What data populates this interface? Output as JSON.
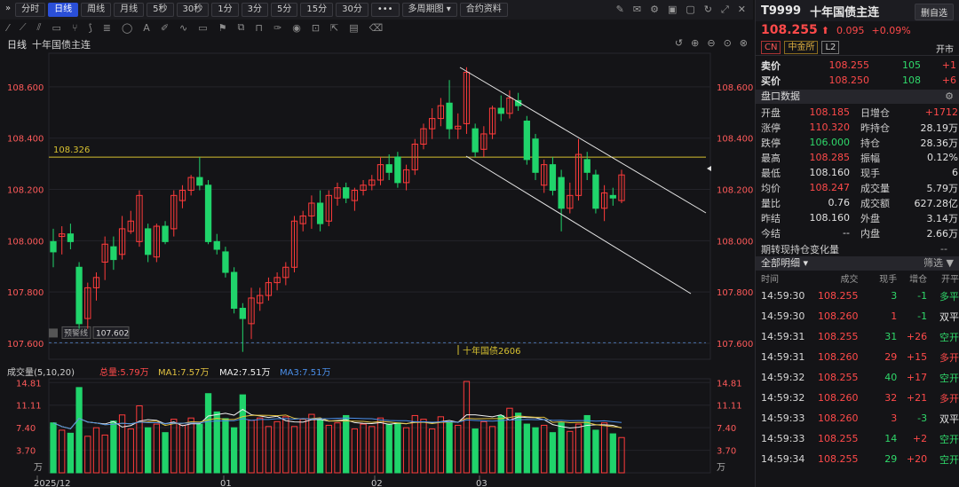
{
  "toolbar": {
    "periods": [
      "分时",
      "日线",
      "周线",
      "月线",
      "5秒",
      "30秒",
      "1分",
      "3分",
      "5分",
      "15分",
      "30分"
    ],
    "active": "日线",
    "more": "•••",
    "multi": "多周期图",
    "contract": "合约资料"
  },
  "chart": {
    "period_label": "日线",
    "name": "十年国债主连",
    "hline_label": "108.326",
    "alert_label": "预警线",
    "alert_value": "107.602",
    "contract_marker": "十年国债2606",
    "y_ticks": [
      "108.600",
      "108.400",
      "108.200",
      "108.000",
      "107.800",
      "107.600"
    ],
    "x_ticks": [
      "2025/12",
      "01",
      "02",
      "03"
    ],
    "colors": {
      "up": "#ff3b3b",
      "down": "#20d46b",
      "hline": "#d6c030",
      "alert": "#4a6fa8"
    }
  },
  "volume": {
    "title": "成交量(5,10,20)",
    "total_label": "总量:5.79万",
    "ma1": "MA1:7.57万",
    "ma2": "MA2:7.51万",
    "ma3": "MA3:7.51万",
    "y_ticks": [
      "14.81",
      "11.11",
      "7.40",
      "3.70"
    ],
    "unit": "万"
  },
  "chart_data": {
    "type": "candlestick",
    "y_range": [
      107.6,
      108.7
    ],
    "candles": [
      {
        "o": 108.0,
        "h": 108.05,
        "l": 107.9,
        "c": 107.96
      },
      {
        "o": 108.02,
        "h": 108.06,
        "l": 107.95,
        "c": 108.03
      },
      {
        "o": 108.03,
        "h": 108.07,
        "l": 107.97,
        "c": 108.0
      },
      {
        "o": 107.9,
        "h": 107.92,
        "l": 107.66,
        "c": 107.68
      },
      {
        "o": 107.7,
        "h": 107.84,
        "l": 107.66,
        "c": 107.82
      },
      {
        "o": 107.82,
        "h": 107.88,
        "l": 107.77,
        "c": 107.86
      },
      {
        "o": 107.92,
        "h": 108.02,
        "l": 107.85,
        "c": 107.99
      },
      {
        "o": 107.98,
        "h": 108.02,
        "l": 107.89,
        "c": 107.93
      },
      {
        "o": 107.95,
        "h": 108.1,
        "l": 107.93,
        "c": 108.05
      },
      {
        "o": 108.04,
        "h": 108.12,
        "l": 108.03,
        "c": 108.08
      },
      {
        "o": 108.0,
        "h": 108.2,
        "l": 107.98,
        "c": 108.18
      },
      {
        "o": 108.05,
        "h": 108.07,
        "l": 107.92,
        "c": 107.95
      },
      {
        "o": 107.94,
        "h": 108.07,
        "l": 107.92,
        "c": 108.06
      },
      {
        "o": 108.06,
        "h": 108.08,
        "l": 107.99,
        "c": 108.0
      },
      {
        "o": 108.05,
        "h": 108.2,
        "l": 108.02,
        "c": 108.18
      },
      {
        "o": 108.16,
        "h": 108.22,
        "l": 108.13,
        "c": 108.2
      },
      {
        "o": 108.2,
        "h": 108.26,
        "l": 108.18,
        "c": 108.25
      },
      {
        "o": 108.25,
        "h": 108.33,
        "l": 108.2,
        "c": 108.22
      },
      {
        "o": 108.22,
        "h": 108.24,
        "l": 107.99,
        "c": 108.0
      },
      {
        "o": 108.0,
        "h": 108.03,
        "l": 107.95,
        "c": 107.97
      },
      {
        "o": 107.96,
        "h": 107.98,
        "l": 107.86,
        "c": 107.88
      },
      {
        "o": 107.88,
        "h": 107.9,
        "l": 107.72,
        "c": 107.74
      },
      {
        "o": 107.74,
        "h": 107.76,
        "l": 107.57,
        "c": 107.7
      },
      {
        "o": 107.68,
        "h": 107.82,
        "l": 107.62,
        "c": 107.78
      },
      {
        "o": 107.76,
        "h": 107.82,
        "l": 107.73,
        "c": 107.79
      },
      {
        "o": 107.79,
        "h": 107.86,
        "l": 107.77,
        "c": 107.84
      },
      {
        "o": 107.84,
        "h": 107.88,
        "l": 107.81,
        "c": 107.86
      },
      {
        "o": 107.86,
        "h": 107.92,
        "l": 107.83,
        "c": 107.9
      },
      {
        "o": 107.9,
        "h": 108.1,
        "l": 107.88,
        "c": 108.08
      },
      {
        "o": 108.07,
        "h": 108.12,
        "l": 108.04,
        "c": 108.1
      },
      {
        "o": 108.1,
        "h": 108.18,
        "l": 108.05,
        "c": 108.15
      },
      {
        "o": 108.15,
        "h": 108.2,
        "l": 108.04,
        "c": 108.07
      },
      {
        "o": 108.08,
        "h": 108.2,
        "l": 108.06,
        "c": 108.18
      },
      {
        "o": 108.17,
        "h": 108.23,
        "l": 108.14,
        "c": 108.21
      },
      {
        "o": 108.21,
        "h": 108.23,
        "l": 108.15,
        "c": 108.17
      },
      {
        "o": 108.16,
        "h": 108.21,
        "l": 108.12,
        "c": 108.2
      },
      {
        "o": 108.2,
        "h": 108.24,
        "l": 108.18,
        "c": 108.22
      },
      {
        "o": 108.22,
        "h": 108.26,
        "l": 108.2,
        "c": 108.24
      },
      {
        "o": 108.24,
        "h": 108.33,
        "l": 108.22,
        "c": 108.3
      },
      {
        "o": 108.3,
        "h": 108.34,
        "l": 108.24,
        "c": 108.27
      },
      {
        "o": 108.33,
        "h": 108.35,
        "l": 108.21,
        "c": 108.23
      },
      {
        "o": 108.23,
        "h": 108.3,
        "l": 108.2,
        "c": 108.28
      },
      {
        "o": 108.28,
        "h": 108.4,
        "l": 108.26,
        "c": 108.38
      },
      {
        "o": 108.38,
        "h": 108.46,
        "l": 108.36,
        "c": 108.44
      },
      {
        "o": 108.44,
        "h": 108.52,
        "l": 108.4,
        "c": 108.48
      },
      {
        "o": 108.48,
        "h": 108.56,
        "l": 108.45,
        "c": 108.53
      },
      {
        "o": 108.54,
        "h": 108.63,
        "l": 108.4,
        "c": 108.44
      },
      {
        "o": 108.44,
        "h": 108.5,
        "l": 108.4,
        "c": 108.45
      },
      {
        "o": 108.46,
        "h": 108.68,
        "l": 108.42,
        "c": 108.66
      },
      {
        "o": 108.44,
        "h": 108.46,
        "l": 108.33,
        "c": 108.35
      },
      {
        "o": 108.36,
        "h": 108.45,
        "l": 108.33,
        "c": 108.42
      },
      {
        "o": 108.42,
        "h": 108.53,
        "l": 108.4,
        "c": 108.52
      },
      {
        "o": 108.52,
        "h": 108.57,
        "l": 108.47,
        "c": 108.5
      },
      {
        "o": 108.5,
        "h": 108.59,
        "l": 108.48,
        "c": 108.56
      },
      {
        "o": 108.55,
        "h": 108.58,
        "l": 108.51,
        "c": 108.53
      },
      {
        "o": 108.47,
        "h": 108.49,
        "l": 108.3,
        "c": 108.32
      },
      {
        "o": 108.4,
        "h": 108.42,
        "l": 108.24,
        "c": 108.27
      },
      {
        "o": 108.22,
        "h": 108.32,
        "l": 108.19,
        "c": 108.3
      },
      {
        "o": 108.3,
        "h": 108.33,
        "l": 108.18,
        "c": 108.2
      },
      {
        "o": 108.25,
        "h": 108.28,
        "l": 108.04,
        "c": 108.13
      },
      {
        "o": 108.13,
        "h": 108.23,
        "l": 108.11,
        "c": 108.18
      },
      {
        "o": 108.18,
        "h": 108.4,
        "l": 108.16,
        "c": 108.34
      },
      {
        "o": 108.32,
        "h": 108.35,
        "l": 108.24,
        "c": 108.27
      },
      {
        "o": 108.26,
        "h": 108.28,
        "l": 108.11,
        "c": 108.13
      },
      {
        "o": 108.13,
        "h": 108.22,
        "l": 108.08,
        "c": 108.19
      },
      {
        "o": 108.18,
        "h": 108.21,
        "l": 108.14,
        "c": 108.17
      },
      {
        "o": 108.16,
        "h": 108.28,
        "l": 108.15,
        "c": 108.26
      }
    ],
    "volumes": [
      8.2,
      7.0,
      6.5,
      14.0,
      6.0,
      7.4,
      6.2,
      8.5,
      9.5,
      7.2,
      11.0,
      7.4,
      8.0,
      6.6,
      8.8,
      7.8,
      9.0,
      8.0,
      13.0,
      10.0,
      8.9,
      7.4,
      12.8,
      8.6,
      9.0,
      7.6,
      8.4,
      9.2,
      7.6,
      8.8,
      9.6,
      8.6,
      7.8,
      8.2,
      9.4,
      7.2,
      8.0,
      7.6,
      9.0,
      8.0,
      8.2,
      7.4,
      9.4,
      8.8,
      7.2,
      9.2,
      8.4,
      7.8,
      15.0,
      7.2,
      8.4,
      7.6,
      9.4,
      10.6,
      9.8,
      8.0,
      7.4,
      7.8,
      6.6,
      8.2,
      6.8,
      8.0,
      9.4,
      7.0,
      8.2,
      6.4,
      5.79
    ]
  },
  "side": {
    "code": "T9999",
    "name": "十年国债主连",
    "fav": "删自选",
    "price": "108.255",
    "arrow": "⬆",
    "change": "0.095",
    "pct": "+0.09%",
    "tags": [
      "CN",
      "中金所",
      "L2"
    ],
    "status": "开市",
    "ask": {
      "label": "卖价",
      "price": "108.255",
      "vol": "105",
      "delta": "+1"
    },
    "bid": {
      "label": "买价",
      "price": "108.250",
      "vol": "108",
      "delta": "+6"
    },
    "panel_title": "盘口数据",
    "stats": [
      [
        "开盘",
        "108.185",
        "red",
        "日增仓",
        "+1712",
        "red"
      ],
      [
        "涨停",
        "110.320",
        "red",
        "昨持仓",
        "28.19万",
        "white"
      ],
      [
        "跌停",
        "106.000",
        "green",
        "持仓",
        "28.36万",
        "white"
      ],
      [
        "最高",
        "108.285",
        "red",
        "振幅",
        "0.12%",
        "white"
      ],
      [
        "最低",
        "108.160",
        "white",
        "现手",
        "6",
        "white"
      ],
      [
        "均价",
        "108.247",
        "red",
        "成交量",
        "5.79万",
        "white"
      ],
      [
        "量比",
        "0.76",
        "white",
        "成交额",
        "627.28亿",
        "white"
      ],
      [
        "昨结",
        "108.160",
        "white",
        "外盘",
        "3.14万",
        "white"
      ],
      [
        "今结",
        "--",
        "white",
        "内盘",
        "2.66万",
        "white"
      ]
    ],
    "extra": "期转现持仓变化量",
    "extra_val": "--",
    "detail_title": "全部明细",
    "filter": "筛选",
    "cols": [
      "时间",
      "成交",
      "现手",
      "增仓",
      "开平"
    ],
    "ticks": [
      [
        "14:59:30",
        "108.255",
        "3",
        "green",
        "-1",
        "green",
        "多平",
        "green"
      ],
      [
        "14:59:30",
        "108.260",
        "1",
        "red",
        "-1",
        "green",
        "双平",
        "white"
      ],
      [
        "14:59:31",
        "108.255",
        "31",
        "green",
        "+26",
        "red",
        "空开",
        "green"
      ],
      [
        "14:59:31",
        "108.260",
        "29",
        "red",
        "+15",
        "red",
        "多开",
        "red"
      ],
      [
        "14:59:32",
        "108.255",
        "40",
        "green",
        "+17",
        "red",
        "空开",
        "green"
      ],
      [
        "14:59:32",
        "108.260",
        "32",
        "red",
        "+21",
        "red",
        "多开",
        "red"
      ],
      [
        "14:59:33",
        "108.260",
        "3",
        "red",
        "-3",
        "green",
        "双平",
        "white"
      ],
      [
        "14:59:33",
        "108.255",
        "14",
        "green",
        "+2",
        "red",
        "空开",
        "green"
      ],
      [
        "14:59:34",
        "108.255",
        "29",
        "green",
        "+20",
        "red",
        "空开",
        "green"
      ]
    ]
  }
}
